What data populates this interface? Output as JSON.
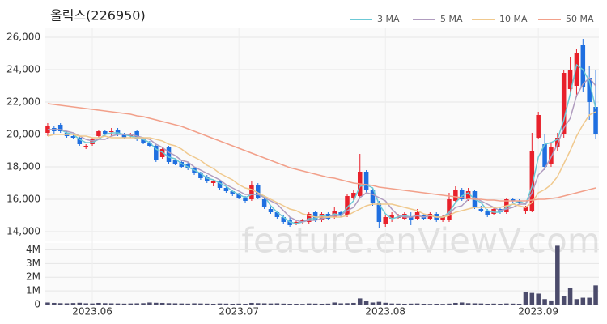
{
  "chart_data": {
    "type": "candlestick",
    "title": "올릭스(226950)",
    "watermark": "feature.enViewV.com",
    "categories": [
      null,
      null,
      null,
      null,
      null,
      null,
      null,
      "2023.06",
      null,
      null,
      null,
      null,
      null,
      null,
      null,
      null,
      null,
      null,
      null,
      null,
      null,
      null,
      null,
      null,
      null,
      null,
      null,
      null,
      null,
      null,
      "2023.07",
      null,
      null,
      null,
      null,
      null,
      null,
      null,
      null,
      null,
      null,
      null,
      null,
      null,
      null,
      null,
      null,
      null,
      null,
      null,
      null,
      null,
      null,
      "2023.08",
      null,
      null,
      null,
      null,
      null,
      null,
      null,
      null,
      null,
      null,
      null,
      null,
      null,
      null,
      null,
      null,
      null,
      null,
      null,
      null,
      null,
      null,
      null,
      "2023.09",
      null,
      null,
      null,
      null,
      null,
      null,
      null,
      null,
      null
    ],
    "open": [
      20100,
      20400,
      20600,
      20100,
      19900,
      19800,
      19200,
      19400,
      19900,
      20200,
      20200,
      20300,
      20000,
      19900,
      20200,
      19700,
      19500,
      19300,
      18600,
      19200,
      18400,
      18300,
      18200,
      17900,
      17600,
      17400,
      17000,
      17100,
      16700,
      16500,
      16300,
      16100,
      16000,
      16900,
      16000,
      15400,
      15200,
      14900,
      14700,
      14500,
      14600,
      14600,
      15200,
      14700,
      15100,
      14900,
      15200,
      15000,
      16100,
      16200,
      17700,
      16600,
      15800,
      14500,
      14800,
      14900,
      14800,
      14900,
      14800,
      15000,
      14800,
      15100,
      14700,
      14700,
      15900,
      16600,
      16000,
      16500,
      15400,
      15300,
      15100,
      15400,
      15200,
      16000,
      15900,
      15300,
      15300,
      19800,
      19400,
      18200,
      19200,
      20000,
      22800,
      23000,
      25500,
      23500,
      21700
    ],
    "high": [
      20700,
      20500,
      20700,
      20200,
      20000,
      19900,
      19400,
      19800,
      20300,
      20300,
      20400,
      20400,
      20100,
      20100,
      20300,
      19800,
      19600,
      19400,
      19200,
      19300,
      18500,
      18400,
      18300,
      18000,
      17700,
      17500,
      17200,
      17200,
      16800,
      16600,
      16400,
      16200,
      17100,
      17000,
      16100,
      15600,
      15300,
      15000,
      14900,
      14700,
      14800,
      15200,
      15300,
      15200,
      15200,
      15500,
      15300,
      16300,
      16600,
      18800,
      17800,
      16700,
      15900,
      15000,
      15200,
      15100,
      15200,
      15200,
      15400,
      15100,
      15200,
      15200,
      15000,
      16400,
      16800,
      16700,
      16700,
      16600,
      15600,
      15400,
      15500,
      15500,
      16100,
      16100,
      16000,
      15600,
      20100,
      21400,
      20000,
      19500,
      20100,
      24000,
      24800,
      25300,
      25900,
      24200,
      24000
    ],
    "low": [
      19900,
      20000,
      20100,
      19800,
      19700,
      19300,
      19100,
      19300,
      19800,
      19900,
      19900,
      19900,
      19700,
      19800,
      19600,
      19400,
      19200,
      18300,
      18500,
      18200,
      18100,
      17900,
      17800,
      17500,
      17200,
      17000,
      16800,
      16600,
      16400,
      16200,
      16000,
      15800,
      15900,
      16000,
      15400,
      15100,
      14800,
      14500,
      14300,
      14400,
      14500,
      14500,
      14600,
      14600,
      14700,
      14800,
      14900,
      14900,
      15900,
      16100,
      16400,
      15600,
      14200,
      14300,
      14600,
      14800,
      14700,
      14400,
      14700,
      14700,
      14700,
      14600,
      14600,
      14600,
      15800,
      15900,
      15900,
      15400,
      15200,
      14900,
      15000,
      15100,
      15100,
      15800,
      15700,
      15100,
      15200,
      19700,
      17800,
      18000,
      19000,
      19800,
      22500,
      22300,
      22600,
      20900,
      19700
    ],
    "close": [
      20500,
      20200,
      20200,
      19900,
      19800,
      19400,
      19300,
      19700,
      20200,
      20000,
      20200,
      20000,
      19800,
      20000,
      19700,
      19500,
      19300,
      18400,
      19100,
      18300,
      18200,
      18000,
      17900,
      17600,
      17300,
      17100,
      17100,
      16700,
      16500,
      16300,
      16100,
      15900,
      16900,
      16100,
      15500,
      15200,
      14900,
      14600,
      14400,
      14600,
      14700,
      15100,
      14700,
      15100,
      14800,
      15300,
      15000,
      16200,
      16400,
      17700,
      16600,
      15800,
      14600,
      14900,
      15000,
      14900,
      15100,
      14700,
      15200,
      14800,
      15100,
      14700,
      14900,
      16000,
      16600,
      16000,
      16500,
      15500,
      15300,
      15000,
      15400,
      15200,
      16000,
      15900,
      15800,
      15500,
      19000,
      21200,
      18000,
      19200,
      19800,
      23800,
      24000,
      25000,
      22900,
      22000,
      20000
    ],
    "up_color": "#e8212b",
    "down_color": "#1f6fe0",
    "ma": [
      {
        "name": "3 MA",
        "color": "#6cc9d6",
        "values": [
          20300,
          20300,
          20300,
          20100,
          20000,
          19700,
          19500,
          19500,
          19700,
          20000,
          20100,
          20100,
          20000,
          19900,
          19800,
          19700,
          19500,
          19100,
          18900,
          18600,
          18500,
          18200,
          18000,
          17800,
          17600,
          17300,
          17200,
          17000,
          16800,
          16500,
          16300,
          16100,
          16300,
          16300,
          16200,
          15600,
          15200,
          14900,
          14600,
          14500,
          14600,
          14800,
          14800,
          15000,
          14900,
          15100,
          15000,
          15500,
          15900,
          16800,
          16900,
          16700,
          15700,
          15100,
          14800,
          14900,
          15000,
          14900,
          15000,
          14900,
          15000,
          14900,
          14900,
          15200,
          15800,
          16200,
          16400,
          16000,
          15800,
          15300,
          15200,
          15200,
          15500,
          15700,
          15900,
          15700,
          16800,
          18600,
          19400,
          19500,
          19700,
          20900,
          22500,
          24300,
          24000,
          23300,
          21600
        ]
      },
      {
        "name": "5 MA",
        "color": "#b09cbf",
        "values": [
          20300,
          20300,
          20300,
          20200,
          20100,
          19900,
          19700,
          19600,
          19700,
          19700,
          19900,
          20000,
          20000,
          20000,
          19900,
          19800,
          19700,
          19400,
          19200,
          18900,
          18700,
          18400,
          18300,
          18000,
          17800,
          17600,
          17400,
          17200,
          16900,
          16700,
          16500,
          16300,
          16300,
          16300,
          16100,
          15900,
          15700,
          15300,
          14900,
          14700,
          14600,
          14700,
          14700,
          14800,
          14900,
          15000,
          15000,
          15300,
          15500,
          16100,
          16400,
          16300,
          16100,
          15900,
          15400,
          15000,
          14900,
          14900,
          15000,
          14900,
          15000,
          14900,
          14900,
          15100,
          15500,
          15600,
          16000,
          16100,
          15900,
          15700,
          15500,
          15300,
          15400,
          15500,
          15700,
          15700,
          16400,
          17500,
          17900,
          18600,
          19400,
          20400,
          21000,
          22400,
          23100,
          23500,
          23000
        ]
      },
      {
        "name": "10 MA",
        "color": "#f0c98e",
        "values": [
          19900,
          20000,
          20000,
          20000,
          20000,
          19900,
          19900,
          19800,
          19800,
          19900,
          19800,
          19800,
          19800,
          19800,
          19800,
          19800,
          19800,
          19700,
          19600,
          19400,
          19300,
          19100,
          18800,
          18600,
          18400,
          18100,
          17900,
          17600,
          17400,
          17200,
          16900,
          16700,
          16600,
          16400,
          16200,
          16000,
          15800,
          15600,
          15400,
          15300,
          15100,
          15000,
          14900,
          14900,
          14900,
          14900,
          14900,
          15000,
          15200,
          15400,
          15600,
          15700,
          15700,
          15700,
          15700,
          15600,
          15500,
          15400,
          15300,
          15100,
          15000,
          14900,
          14900,
          15000,
          15200,
          15300,
          15400,
          15500,
          15500,
          15500,
          15500,
          15500,
          15600,
          15700,
          15600,
          15500,
          15800,
          16400,
          16600,
          16900,
          17400,
          18200,
          19000,
          19900,
          20600,
          21200,
          21400
        ]
      },
      {
        "name": "50 MA",
        "color": "#f2a08a",
        "values": [
          21900,
          21850,
          21800,
          21750,
          21700,
          21650,
          21600,
          21550,
          21500,
          21450,
          21400,
          21350,
          21300,
          21250,
          21150,
          21100,
          21000,
          20900,
          20800,
          20700,
          20600,
          20500,
          20350,
          20200,
          20050,
          19900,
          19750,
          19600,
          19450,
          19300,
          19150,
          19000,
          18850,
          18700,
          18550,
          18400,
          18250,
          18100,
          17950,
          17850,
          17750,
          17650,
          17550,
          17450,
          17350,
          17300,
          17200,
          17100,
          17000,
          16950,
          16900,
          16850,
          16750,
          16700,
          16650,
          16600,
          16550,
          16500,
          16450,
          16400,
          16350,
          16300,
          16250,
          16200,
          16150,
          16100,
          16050,
          16000,
          16000,
          15950,
          15950,
          15900,
          15900,
          15900,
          15900,
          15900,
          15950,
          16000,
          16000,
          16050,
          16100,
          16200,
          16300,
          16400,
          16500,
          16600,
          16700
        ]
      }
    ],
    "ylim": [
      13400,
      26600
    ],
    "yticks": [
      {
        "value": 14000,
        "label": "14,000"
      },
      {
        "value": 16000,
        "label": "16,000"
      },
      {
        "value": 18000,
        "label": "18,000"
      },
      {
        "value": 20000,
        "label": "20,000"
      },
      {
        "value": 22000,
        "label": "22,000"
      },
      {
        "value": 24000,
        "label": "24,000"
      },
      {
        "value": 26000,
        "label": "26,000"
      }
    ],
    "grid": true,
    "volume": {
      "color": "#4b4b6b",
      "values": [
        150000,
        120000,
        100000,
        90000,
        110000,
        130000,
        90000,
        80000,
        120000,
        100000,
        90000,
        80000,
        70000,
        80000,
        90000,
        100000,
        150000,
        130000,
        120000,
        100000,
        90000,
        80000,
        70000,
        90000,
        80000,
        70000,
        60000,
        80000,
        70000,
        60000,
        70000,
        60000,
        120000,
        100000,
        90000,
        80000,
        90000,
        70000,
        60000,
        60000,
        50000,
        80000,
        70000,
        60000,
        70000,
        150000,
        90000,
        100000,
        120000,
        450000,
        250000,
        150000,
        200000,
        130000,
        80000,
        70000,
        60000,
        70000,
        80000,
        60000,
        50000,
        60000,
        50000,
        70000,
        120000,
        150000,
        100000,
        90000,
        80000,
        60000,
        70000,
        60000,
        80000,
        70000,
        60000,
        900000,
        850000,
        800000,
        400000,
        300000,
        4300000,
        600000,
        1200000,
        400000,
        500000,
        500000,
        1400000
      ],
      "ylim": [
        0,
        4500000
      ],
      "yticks": [
        0,
        {
          "value": 1000000,
          "label": "1M"
        },
        {
          "value": 2000000,
          "label": "2M"
        },
        {
          "value": 3000000,
          "label": "3M"
        },
        {
          "value": 4000000,
          "label": "4M"
        }
      ]
    }
  }
}
